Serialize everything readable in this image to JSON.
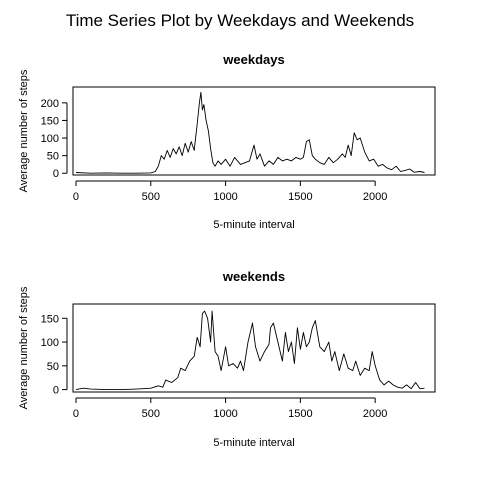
{
  "figure": {
    "title": "Time Series Plot by Weekdays and Weekends"
  },
  "chart_data": [
    {
      "type": "line",
      "title": "weekdays",
      "xlabel": "5-minute interval",
      "ylabel": "Average number of steps",
      "xlim": [
        -20,
        2400
      ],
      "ylim": [
        -5,
        245
      ],
      "xticks": [
        0,
        500,
        1000,
        1500,
        2000
      ],
      "yticks": [
        0,
        50,
        100,
        150,
        200
      ],
      "series": [
        {
          "x": [
            0,
            100,
            200,
            300,
            400,
            500,
            530,
            550,
            570,
            590,
            610,
            630,
            650,
            670,
            690,
            710,
            730,
            750,
            770,
            790,
            810,
            825,
            835,
            845,
            855,
            870,
            885,
            900,
            915,
            930,
            950,
            970,
            1000,
            1030,
            1060,
            1100,
            1130,
            1160,
            1190,
            1210,
            1230,
            1260,
            1290,
            1320,
            1350,
            1380,
            1410,
            1440,
            1470,
            1500,
            1520,
            1540,
            1560,
            1580,
            1600,
            1630,
            1660,
            1690,
            1720,
            1750,
            1780,
            1800,
            1820,
            1840,
            1860,
            1880,
            1900,
            1930,
            1960,
            1990,
            2020,
            2050,
            2080,
            2110,
            2140,
            2170,
            2200,
            2230,
            2260,
            2300,
            2330
          ],
          "y": [
            2,
            0,
            1,
            0,
            0,
            1,
            5,
            20,
            50,
            40,
            65,
            45,
            70,
            55,
            75,
            50,
            85,
            60,
            90,
            65,
            140,
            200,
            230,
            180,
            195,
            150,
            120,
            70,
            30,
            20,
            35,
            25,
            40,
            20,
            45,
            25,
            30,
            35,
            80,
            40,
            55,
            20,
            35,
            25,
            45,
            35,
            40,
            35,
            45,
            40,
            45,
            90,
            95,
            50,
            40,
            30,
            25,
            45,
            30,
            40,
            55,
            45,
            80,
            50,
            115,
            95,
            100,
            60,
            35,
            40,
            20,
            25,
            15,
            10,
            20,
            5,
            8,
            12,
            3,
            5,
            2
          ]
        }
      ]
    },
    {
      "type": "line",
      "title": "weekends",
      "xlabel": "5-minute interval",
      "ylabel": "Average number of steps",
      "xlim": [
        -20,
        2400
      ],
      "ylim": [
        -5,
        180
      ],
      "xticks": [
        0,
        500,
        1000,
        1500,
        2000
      ],
      "yticks": [
        0,
        50,
        100,
        150
      ],
      "series": [
        {
          "x": [
            0,
            50,
            100,
            200,
            300,
            400,
            450,
            500,
            550,
            580,
            600,
            640,
            680,
            700,
            730,
            760,
            790,
            810,
            830,
            845,
            860,
            880,
            900,
            910,
            930,
            950,
            970,
            1000,
            1020,
            1050,
            1080,
            1100,
            1120,
            1150,
            1180,
            1200,
            1230,
            1260,
            1290,
            1300,
            1320,
            1350,
            1380,
            1400,
            1420,
            1440,
            1460,
            1480,
            1500,
            1520,
            1540,
            1560,
            1580,
            1600,
            1630,
            1660,
            1690,
            1710,
            1730,
            1760,
            1790,
            1820,
            1850,
            1870,
            1900,
            1930,
            1960,
            1980,
            2000,
            2030,
            2060,
            2090,
            2120,
            2150,
            2180,
            2210,
            2240,
            2270,
            2300,
            2330
          ],
          "y": [
            0,
            3,
            1,
            0,
            0,
            1,
            2,
            3,
            8,
            5,
            20,
            15,
            25,
            45,
            40,
            60,
            70,
            110,
            90,
            160,
            165,
            150,
            100,
            165,
            80,
            70,
            40,
            90,
            50,
            55,
            45,
            60,
            40,
            100,
            140,
            90,
            60,
            80,
            95,
            130,
            140,
            100,
            60,
            120,
            80,
            100,
            55,
            130,
            85,
            120,
            90,
            100,
            130,
            145,
            90,
            80,
            100,
            60,
            80,
            40,
            75,
            45,
            40,
            60,
            30,
            45,
            40,
            80,
            50,
            20,
            10,
            18,
            10,
            5,
            3,
            10,
            2,
            15,
            2,
            3
          ]
        }
      ]
    }
  ]
}
